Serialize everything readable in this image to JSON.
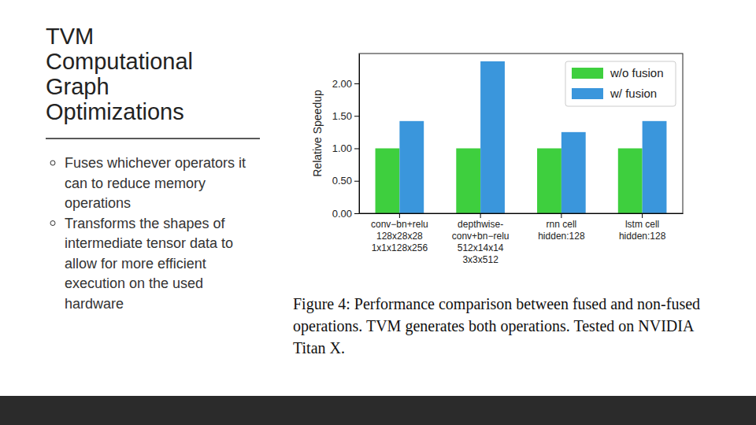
{
  "slide": {
    "title": "TVM Computational Graph Optimizations",
    "bullets": [
      "Fuses whichever operators it can to reduce memory operations",
      "Transforms the shapes of intermediate tensor data to allow for more efficient execution on the used hardware"
    ],
    "caption": "Figure 4: Performance comparison between fused and non-fused operations. TVM generates both operations. Tested on NVIDIA Titan X."
  },
  "chart_data": {
    "type": "bar",
    "y_label": "Relative Speedup",
    "categories": [
      "conv−bn+relu\n128x28x28\n1x1x128x256",
      "depthwise-\nconv+bn−relu\n512x14x14\n3x3x512",
      "rnn cell\nhidden:128",
      "lstm cell\nhidden:128"
    ],
    "series": [
      {
        "name": "w/o fusion",
        "color": "#3ecf3e",
        "values": [
          1.0,
          1.0,
          1.0,
          1.0
        ]
      },
      {
        "name": "w/ fusion",
        "color": "#3a96dc",
        "values": [
          1.42,
          2.34,
          1.25,
          1.42
        ]
      }
    ],
    "ylim": [
      0,
      2.46
    ],
    "yticks": [
      {
        "value": 0,
        "label": "0.00"
      },
      {
        "value": 0.5,
        "label": "0.50"
      },
      {
        "value": 1,
        "label": "1.00"
      },
      {
        "value": 1.5,
        "label": "1.50"
      },
      {
        "value": 2,
        "label": "2.00"
      }
    ],
    "legend": "upper right",
    "grid": false
  }
}
